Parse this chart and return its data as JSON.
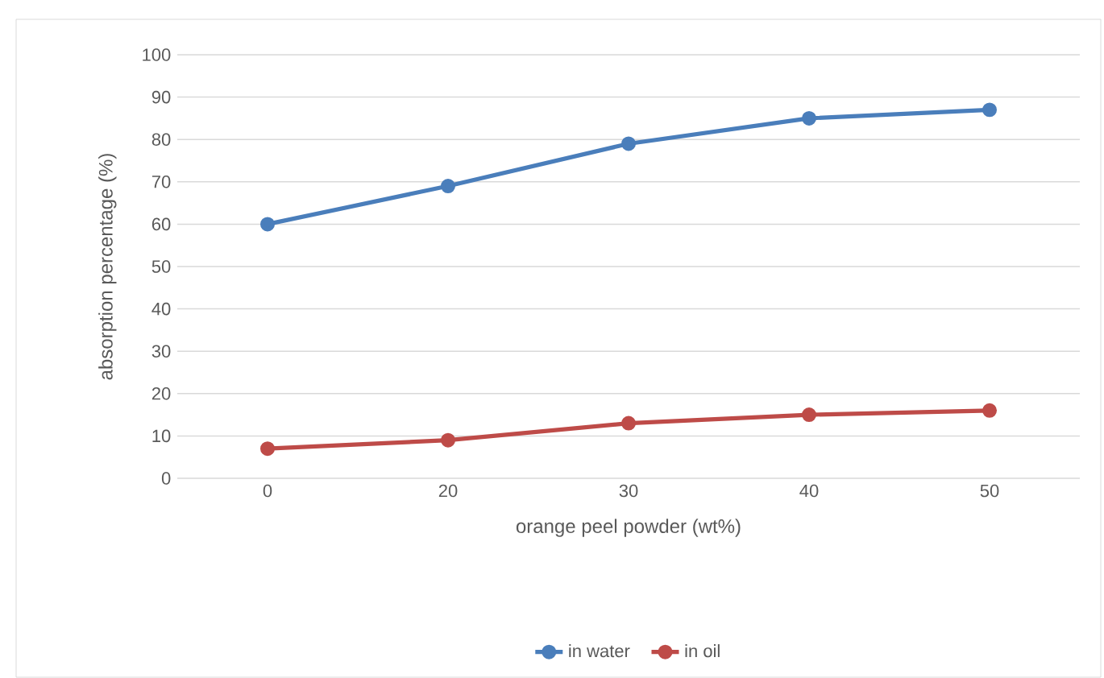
{
  "chart_data": {
    "type": "line",
    "categories": [
      "0",
      "20",
      "30",
      "40",
      "50"
    ],
    "xlabel": "orange peel powder (wt%)",
    "ylabel": "absorption percentage (%)",
    "ylim": [
      0,
      100
    ],
    "yticks": [
      0,
      10,
      20,
      30,
      40,
      50,
      60,
      70,
      80,
      90,
      100
    ],
    "grid": "y",
    "legend": "bottom",
    "marker": "circle",
    "line_style": "solid",
    "series": [
      {
        "name": "in water",
        "color": "#4a7ebb",
        "values": [
          60,
          69,
          79,
          85,
          87
        ]
      },
      {
        "name": "in oil",
        "color": "#be4b48",
        "values": [
          7,
          9,
          13,
          15,
          16
        ]
      }
    ]
  }
}
